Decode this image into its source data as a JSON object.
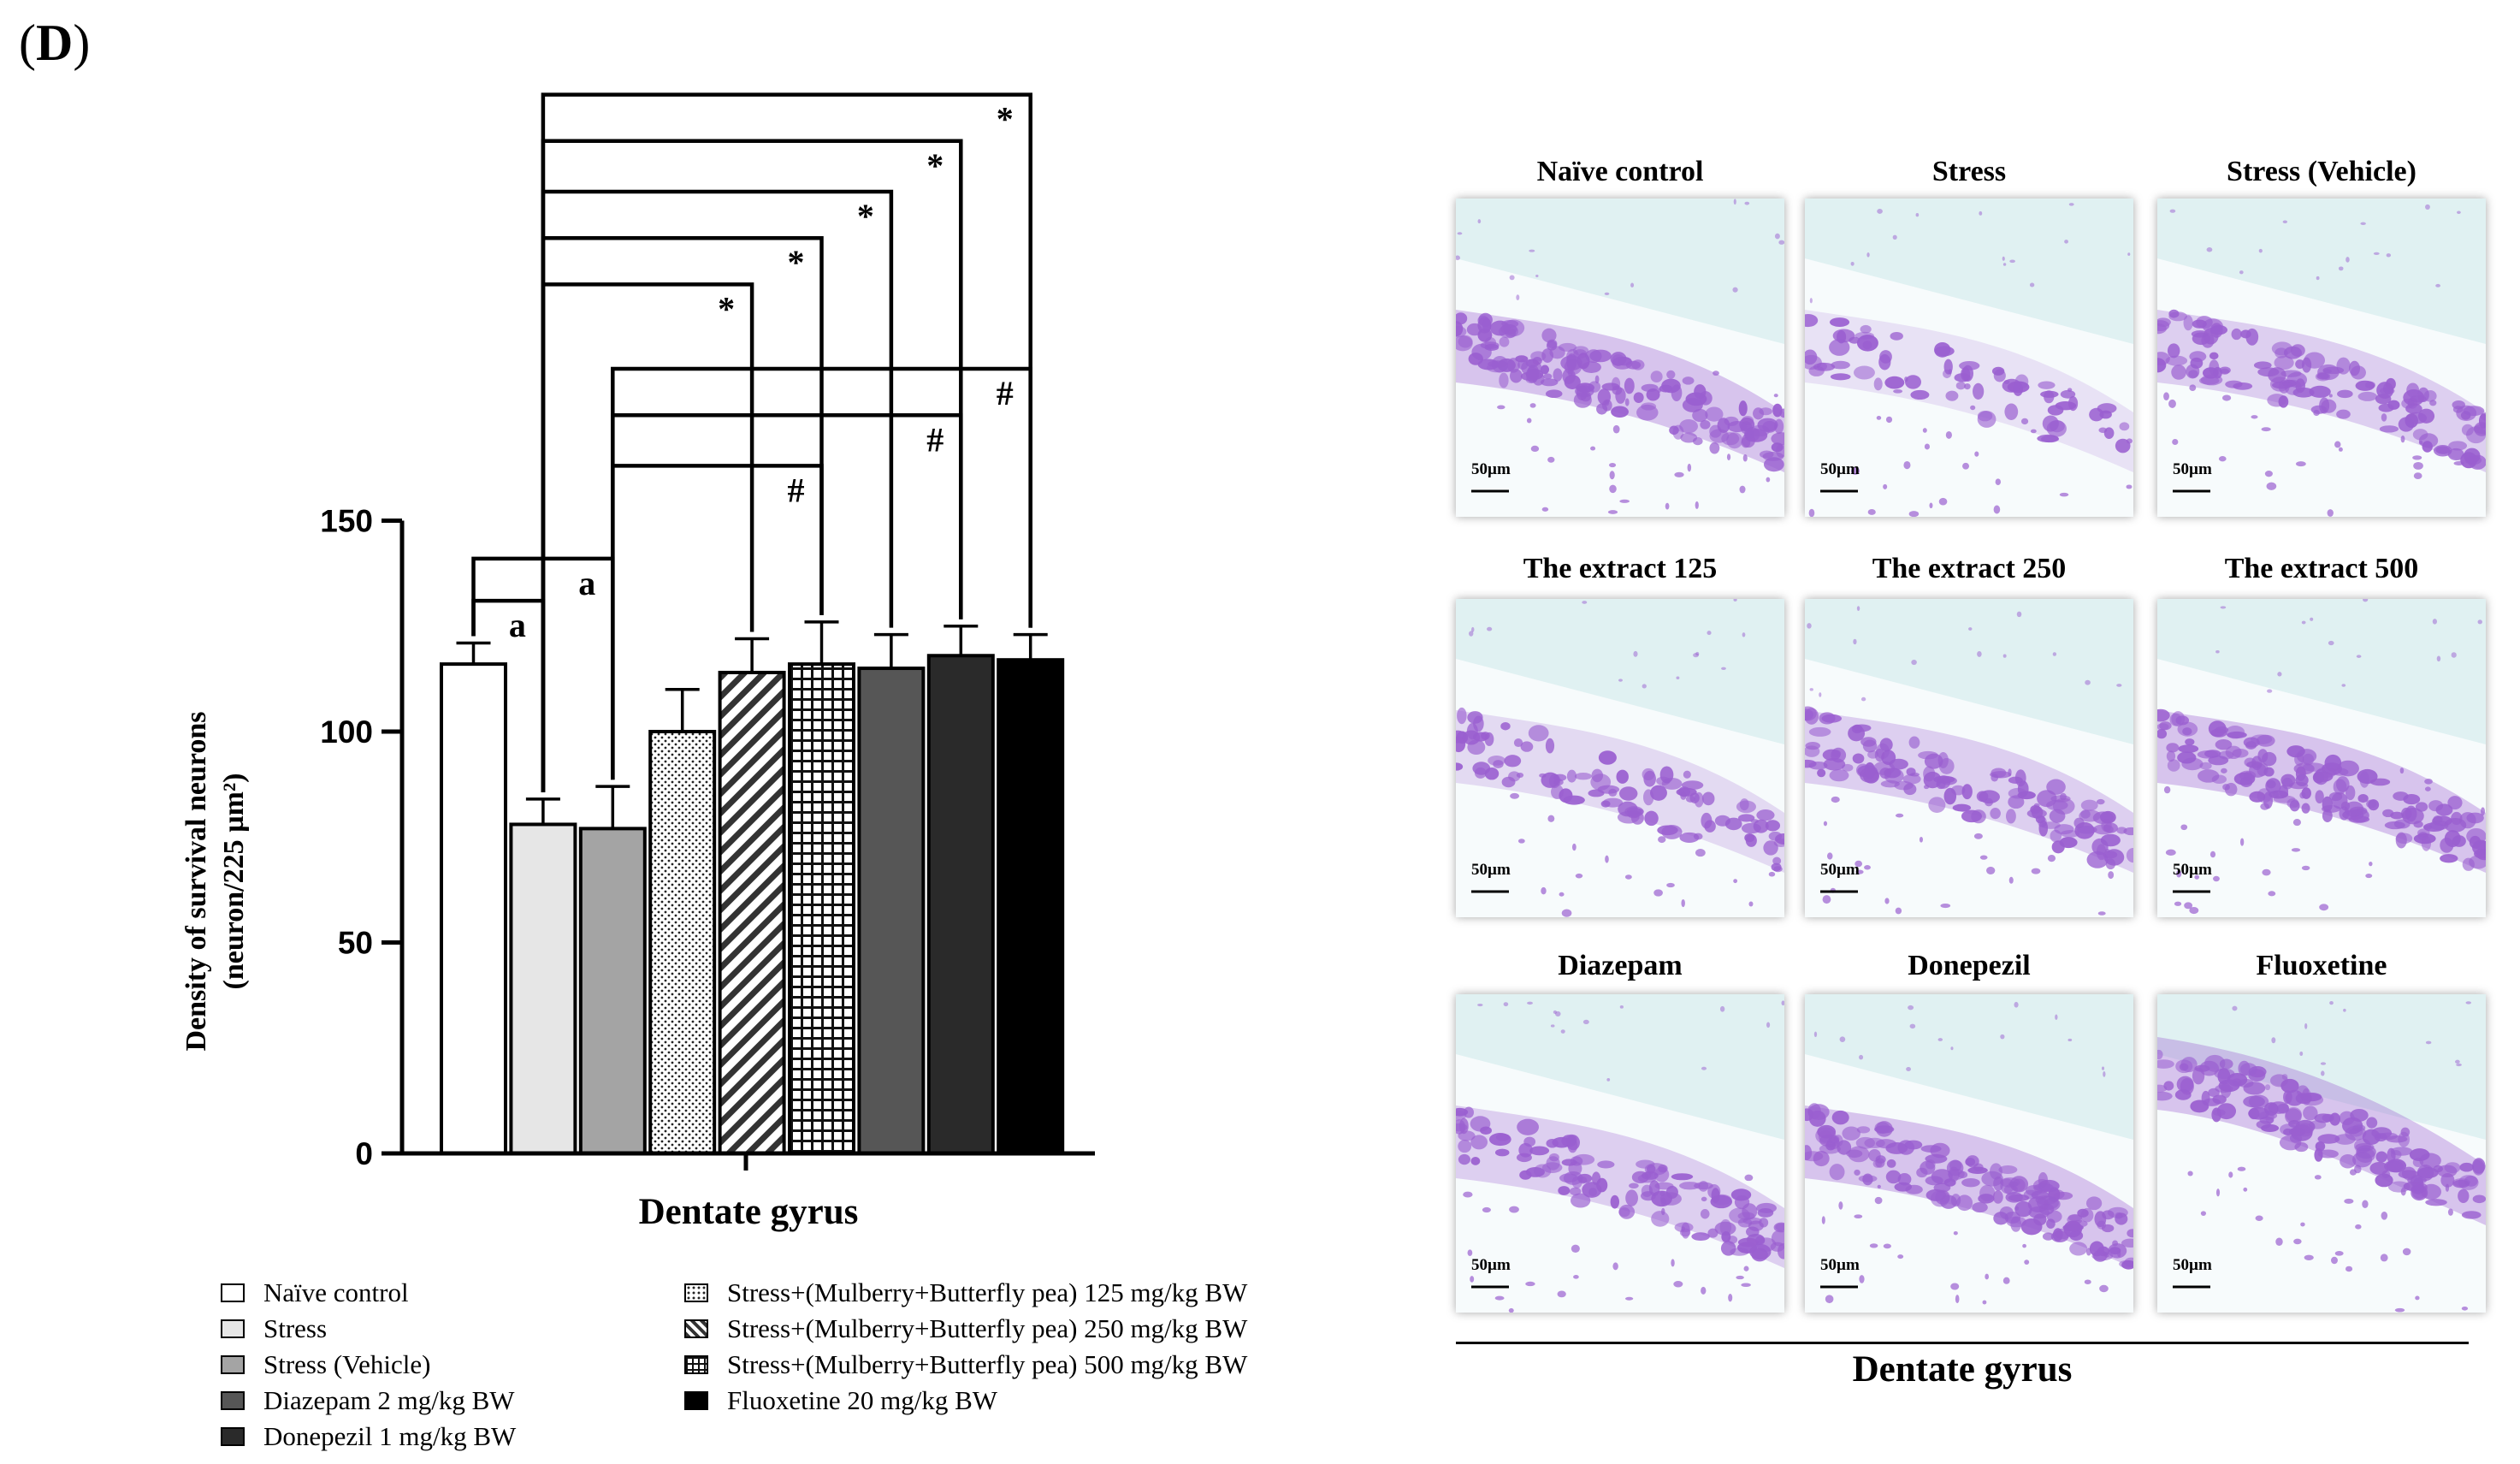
{
  "panel": {
    "label": "(D)",
    "letter": "D"
  },
  "chart_data": {
    "type": "bar",
    "title": "",
    "xlabel": "Dentate gyrus",
    "ylabel_line1": "Density of survival neurons",
    "ylabel_line2": "(neuron/225 µm²)",
    "ylim": [
      0,
      150
    ],
    "yticks": [
      0,
      50,
      100,
      150
    ],
    "ytick_labels": [
      "0",
      "50",
      "100",
      "150"
    ],
    "categories": [
      "Naïve control",
      "Stress",
      "Stress (Vehicle)",
      "Stress+(Mulberry+Butterfly pea) 125 mg/kg BW",
      "Stress+(Mulberry+Butterfly pea) 250 mg/kg BW",
      "Stress+(Mulberry+Butterfly pea) 500 mg/kg BW",
      "Diazepam 2 mg/kg BW",
      "Donepezil 1 mg/kg BW",
      "Fluoxetine 20 mg/kg BW"
    ],
    "values": [
      116,
      78,
      77,
      100,
      114,
      116,
      115,
      118,
      117
    ],
    "errors": [
      5,
      6,
      10,
      10,
      8,
      10,
      8,
      7,
      6
    ],
    "fills": [
      "white",
      "#e6e6e6",
      "#a4a4a4",
      "dots",
      "diagonal",
      "grid",
      "#565656",
      "#2a2a2a",
      "#000000"
    ],
    "significance": [
      {
        "from": 0,
        "to": 1,
        "label": "a",
        "level": 131
      },
      {
        "from": 0,
        "to": 2,
        "label": "a",
        "level": 141
      },
      {
        "from": 2,
        "to": 5,
        "label": "#",
        "level": 163
      },
      {
        "from": 2,
        "to": 7,
        "label": "#",
        "level": 175
      },
      {
        "from": 2,
        "to": 8,
        "label": "#",
        "level": 186
      },
      {
        "from": 1,
        "to": 4,
        "label": "*",
        "level": 206
      },
      {
        "from": 1,
        "to": 5,
        "label": "*",
        "level": 217
      },
      {
        "from": 1,
        "to": 6,
        "label": "*",
        "level": 228
      },
      {
        "from": 1,
        "to": 7,
        "label": "*",
        "level": 240
      },
      {
        "from": 1,
        "to": 8,
        "label": "*",
        "level": 251
      }
    ]
  },
  "legend": {
    "left": [
      {
        "label": "Naïve control",
        "fill": "white"
      },
      {
        "label": "Stress",
        "fill": "#e6e6e6"
      },
      {
        "label": "Stress (Vehicle)",
        "fill": "#a4a4a4"
      },
      {
        "label": "Diazepam 2 mg/kg BW",
        "fill": "#565656"
      },
      {
        "label": "Donepezil 1 mg/kg BW",
        "fill": "#2a2a2a"
      }
    ],
    "right": [
      {
        "label": "Stress+(Mulberry+Butterfly pea) 125 mg/kg BW",
        "fill": "dots"
      },
      {
        "label": "Stress+(Mulberry+Butterfly pea) 250 mg/kg BW",
        "fill": "diagonal"
      },
      {
        "label": "Stress+(Mulberry+Butterfly pea) 500 mg/kg BW",
        "fill": "grid"
      },
      {
        "label": "Fluoxetine 20 mg/kg BW",
        "fill": "#000000"
      }
    ]
  },
  "micrographs": {
    "tiles": [
      {
        "title": "Naïve control",
        "scale": "50µm",
        "band": "thick"
      },
      {
        "title": "Stress",
        "scale": "50µm",
        "band": "sparse"
      },
      {
        "title": "Stress (Vehicle)",
        "scale": "50µm",
        "band": "medium"
      },
      {
        "title": "The extract 125",
        "scale": "50µm",
        "band": "light"
      },
      {
        "title": "The extract 250",
        "scale": "50µm",
        "band": "medium"
      },
      {
        "title": "The extract 500",
        "scale": "50µm",
        "band": "thick"
      },
      {
        "title": "Diazepam",
        "scale": "50µm",
        "band": "medium"
      },
      {
        "title": "Donepezil",
        "scale": "50µm",
        "band": "thick"
      },
      {
        "title": "Fluoxetine",
        "scale": "50µm",
        "band": "thick"
      }
    ],
    "caption": "Dentate gyrus",
    "colors": {
      "stain": "#9a5fd0",
      "background_tint": "#d6ecee"
    }
  }
}
